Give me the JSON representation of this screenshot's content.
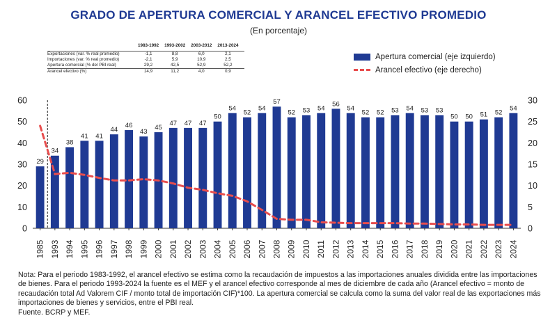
{
  "header": {
    "title": "GRADO DE APERTURA COMERCIAL Y ARANCEL EFECTIVO PROMEDIO",
    "subtitle": "(En porcentaje)"
  },
  "stats_table": {
    "columns": [
      "1983-1992",
      "1993-2002",
      "2003-2012",
      "2013-2024"
    ],
    "rows": [
      {
        "label": "Exportaciones (var. % real promedio)",
        "values": [
          "-1,1",
          "8,8",
          "6,0",
          "2,1"
        ]
      },
      {
        "label": "Importaciones (var. % real promedio)",
        "values": [
          "-2,1",
          "5,9",
          "10,9",
          "2,5"
        ]
      },
      {
        "label": "Apertura comercial (% del PBI real)",
        "values": [
          "29,2",
          "42,5",
          "52,9",
          "52,2"
        ]
      },
      {
        "label": "Arancel efectivo (%)",
        "values": [
          "14,9",
          "11,2",
          "4,0",
          "0,9"
        ]
      }
    ]
  },
  "legend": {
    "bar_label": "Apertura comercial (eje izquierdo)",
    "line_label": "Arancel efectivo (eje derecho)"
  },
  "colors": {
    "bar": "#1f3a93",
    "line": "#e84d4d",
    "axis": "#333333"
  },
  "chart_data": {
    "type": "bar",
    "categories": [
      "1985",
      "1993",
      "1994",
      "1995",
      "1996",
      "1997",
      "1998",
      "1999",
      "2000",
      "2001",
      "2002",
      "2003",
      "2004",
      "2005",
      "2006",
      "2007",
      "2008",
      "2009",
      "2010",
      "2011",
      "2012",
      "2013",
      "2014",
      "2015",
      "2016",
      "2017",
      "2018",
      "2019",
      "2020",
      "2021",
      "2022",
      "2023",
      "2024"
    ],
    "series": [
      {
        "name": "Apertura comercial (eje izquierdo)",
        "type": "bar",
        "axis": "left",
        "values": [
          29,
          34,
          38,
          41,
          41,
          44,
          46,
          43,
          45,
          47,
          47,
          47,
          50,
          54,
          52,
          54,
          57,
          52,
          53,
          54,
          56,
          54,
          52,
          52,
          53,
          54,
          53,
          53,
          50,
          50,
          51,
          52,
          54
        ]
      },
      {
        "name": "Arancel efectivo (eje derecho)",
        "type": "line",
        "axis": "right",
        "dashed": true,
        "start_value": 24,
        "values": [
          24,
          12.7,
          13,
          12.5,
          11.8,
          11.2,
          11.2,
          11.5,
          11.2,
          10.5,
          9.5,
          9,
          8.2,
          7.6,
          6.3,
          4.3,
          2.2,
          2,
          2,
          1.4,
          1.3,
          1.2,
          1.2,
          1.2,
          1.2,
          1.1,
          1.1,
          1,
          0.9,
          0.9,
          0.8,
          0.8,
          0.8
        ]
      }
    ],
    "y_left": {
      "min": 0,
      "max": 60,
      "ticks": [
        0,
        10,
        20,
        30,
        40,
        50,
        60
      ]
    },
    "y_right": {
      "min": 0,
      "max": 30,
      "ticks": [
        0,
        5,
        10,
        15,
        20,
        25,
        30
      ]
    },
    "break_after": "1985",
    "bar_labels": true
  },
  "footer": {
    "note": "Nota: Para el periodo 1983-1992, el arancel efectivo se estima como la recaudación de impuestos a las importaciones anuales dividida entre las importaciones de bienes. Para el periodo 1993-2024 la fuente es el MEF y el arancel efectivo corresponde al mes de diciembre de cada año (Arancel efectivo = monto de recaudación total Ad Valorem CIF / monto total de importación CIF)*100. La apertura comercial se calcula como la suma del valor real de las exportaciones más importaciones de bienes y servicios, entre el PBI real.",
    "source": "Fuente. BCRP y MEF."
  }
}
